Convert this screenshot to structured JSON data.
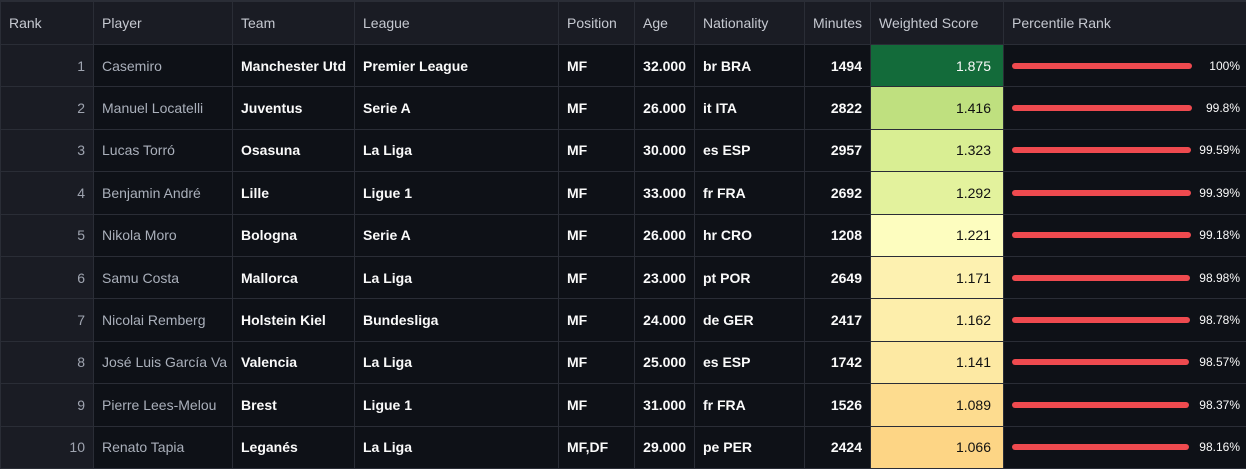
{
  "columns": [
    "Rank",
    "Player",
    "Team",
    "League",
    "Position",
    "Age",
    "Nationality",
    "Minutes",
    "Weighted Score",
    "Percentile Rank"
  ],
  "rows": [
    {
      "rank": "1",
      "player": "Casemiro",
      "team": "Manchester Utd",
      "league": "Premier League",
      "position": "MF",
      "age": "32.000",
      "nationality": "br BRA",
      "minutes": "1494",
      "score": "1.875",
      "score_color": "#136b3a",
      "score_text_color": "#fafafa",
      "percentile_label": "100%",
      "percentile_value": 100
    },
    {
      "rank": "2",
      "player": "Manuel Locatelli",
      "team": "Juventus",
      "league": "Serie A",
      "position": "MF",
      "age": "26.000",
      "nationality": "it ITA",
      "minutes": "2822",
      "score": "1.416",
      "score_color": "#bfe07f",
      "score_text_color": "#111111",
      "percentile_label": "99.8%",
      "percentile_value": 99.8
    },
    {
      "rank": "3",
      "player": "Lucas Torró",
      "team": "Osasuna",
      "league": "La Liga",
      "position": "MF",
      "age": "30.000",
      "nationality": "es ESP",
      "minutes": "2957",
      "score": "1.323",
      "score_color": "#d9ee93",
      "score_text_color": "#111111",
      "percentile_label": "99.59%",
      "percentile_value": 99.59
    },
    {
      "rank": "4",
      "player": "Benjamin André",
      "team": "Lille",
      "league": "Ligue 1",
      "position": "MF",
      "age": "33.000",
      "nationality": "fr FRA",
      "minutes": "2692",
      "score": "1.292",
      "score_color": "#e3f29d",
      "score_text_color": "#111111",
      "percentile_label": "99.39%",
      "percentile_value": 99.39
    },
    {
      "rank": "5",
      "player": "Nikola Moro",
      "team": "Bologna",
      "league": "Serie A",
      "position": "MF",
      "age": "26.000",
      "nationality": "hr CRO",
      "minutes": "1208",
      "score": "1.221",
      "score_color": "#fdfdbf",
      "score_text_color": "#111111",
      "percentile_label": "99.18%",
      "percentile_value": 99.18
    },
    {
      "rank": "6",
      "player": "Samu Costa",
      "team": "Mallorca",
      "league": "La Liga",
      "position": "MF",
      "age": "23.000",
      "nationality": "pt POR",
      "minutes": "2649",
      "score": "1.171",
      "score_color": "#fdf1b0",
      "score_text_color": "#111111",
      "percentile_label": "98.98%",
      "percentile_value": 98.98
    },
    {
      "rank": "7",
      "player": "Nicolai Remberg",
      "team": "Holstein Kiel",
      "league": "Bundesliga",
      "position": "MF",
      "age": "24.000",
      "nationality": "de GER",
      "minutes": "2417",
      "score": "1.162",
      "score_color": "#fdeeab",
      "score_text_color": "#111111",
      "percentile_label": "98.78%",
      "percentile_value": 98.78
    },
    {
      "rank": "8",
      "player": "José Luis García Va",
      "team": "Valencia",
      "league": "La Liga",
      "position": "MF",
      "age": "25.000",
      "nationality": "es ESP",
      "minutes": "1742",
      "score": "1.141",
      "score_color": "#fde9a3",
      "score_text_color": "#111111",
      "percentile_label": "98.57%",
      "percentile_value": 98.57
    },
    {
      "rank": "9",
      "player": "Pierre Lees-Melou",
      "team": "Brest",
      "league": "Ligue 1",
      "position": "MF",
      "age": "31.000",
      "nationality": "fr FRA",
      "minutes": "1526",
      "score": "1.089",
      "score_color": "#fddc8f",
      "score_text_color": "#111111",
      "percentile_label": "98.37%",
      "percentile_value": 98.37
    },
    {
      "rank": "10",
      "player": "Renato Tapia",
      "team": "Leganés",
      "league": "La Liga",
      "position": "MF,DF",
      "age": "29.000",
      "nationality": "pe PER",
      "minutes": "2424",
      "score": "1.066",
      "score_color": "#fdd585",
      "score_text_color": "#111111",
      "percentile_label": "98.16%",
      "percentile_value": 98.16
    }
  ],
  "colors": {
    "background": "#0e1117",
    "header_background": "#1a1c24",
    "grid_line": "#2a2d36",
    "bar": "#ee4a4f"
  }
}
